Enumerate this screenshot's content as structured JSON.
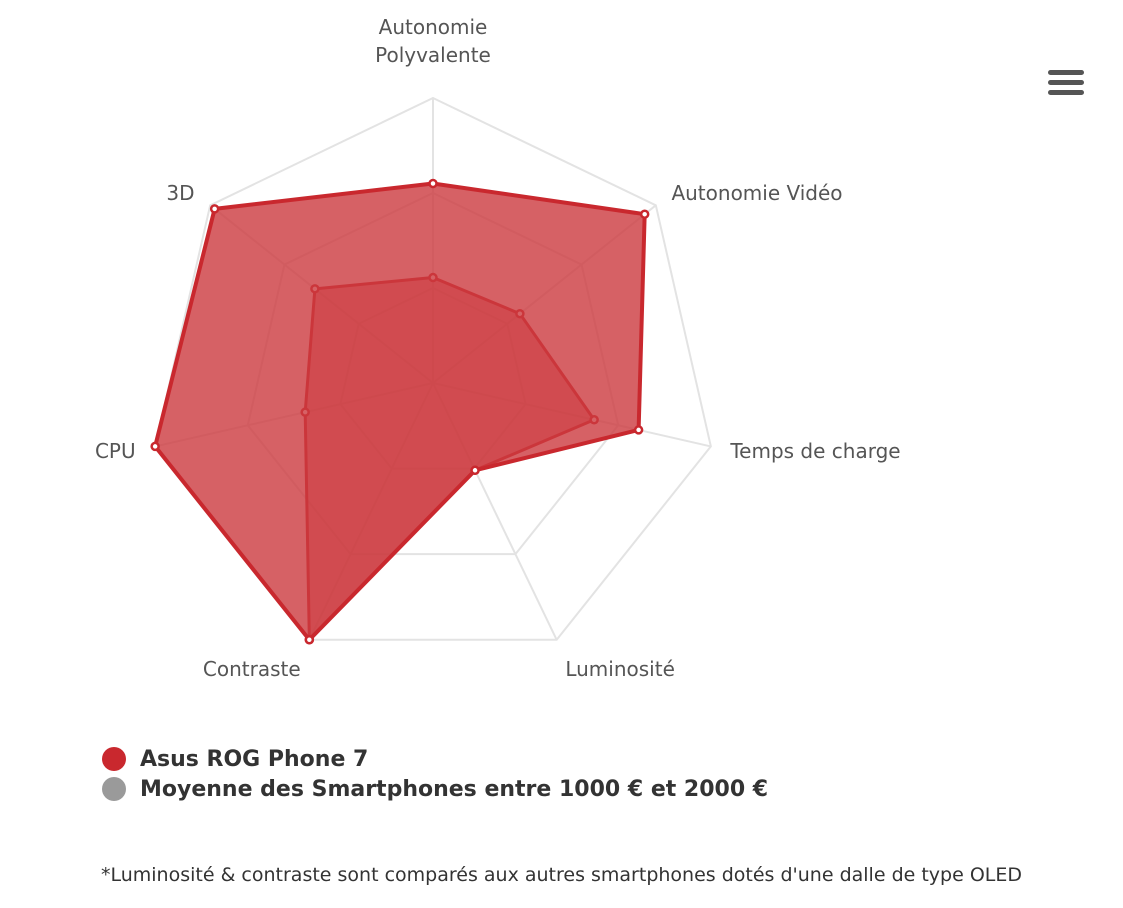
{
  "chart_data": {
    "type": "radar",
    "categories": [
      "Autonomie Polyvalente",
      "Autonomie Vidéo",
      "Temps de charge",
      "Luminosité",
      "Contraste",
      "CPU",
      "3D"
    ],
    "label_lines": [
      [
        "Autonomie",
        "Polyvalente"
      ],
      [
        "Autonomie Vidéo"
      ],
      [
        "Temps de charge"
      ],
      [
        "Luminosité"
      ],
      [
        "Contraste"
      ],
      [
        "CPU"
      ],
      [
        "3D"
      ]
    ],
    "max": 100,
    "grid_levels": 3,
    "series": [
      {
        "name": "Asus ROG Phone 7",
        "color": "#c9282e",
        "values": [
          70,
          95,
          74,
          34,
          100,
          100,
          98
        ]
      },
      {
        "name": "Moyenne des Smartphones entre 1000 € et 2000 €",
        "color": "#9a9a9a",
        "values": [
          37,
          39,
          58,
          34,
          100,
          46,
          53
        ]
      }
    ]
  },
  "legend": {
    "series_1": "Asus ROG Phone 7",
    "series_2": "Moyenne des Smartphones entre 1000 € et 2000 €",
    "series_1_color": "#c9282e",
    "series_2_color": "#9a9a9a"
  },
  "footnote": "*Luminosité & contraste sont comparés aux autres smartphones dotés d'une dalle de type OLED",
  "menu_icon": "hamburger-menu-icon"
}
